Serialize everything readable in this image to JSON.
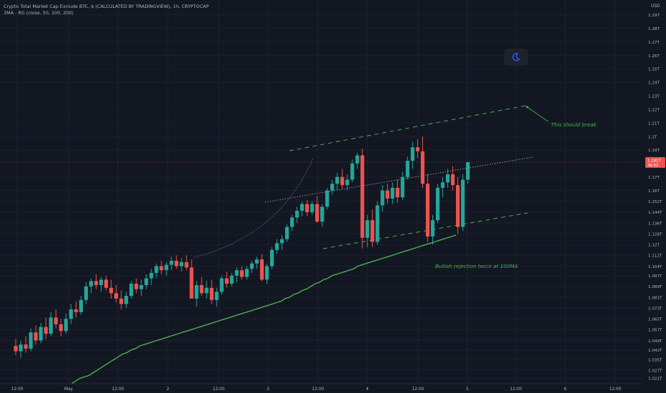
{
  "header": {
    "title": "Crypto Total Market Cap Exclude BTC, $ (CALCULATED BY TRADINGVIEW), 1h, CRYPTOCAP",
    "indicator": "3MA - RG (close, 50, 100, 200)"
  },
  "currency_label": "USD",
  "theme_toggle_icon": "moon-icon",
  "colors": {
    "background": "#131722",
    "grid": "#1c2030",
    "up": "#26a69a",
    "down": "#ef5350",
    "ma": "#4caf50",
    "axis_text": "#b2b5be",
    "annotation": "#4caf50"
  },
  "chart_data": {
    "type": "candlestick",
    "title": "Crypto Total Market Cap Exclude BTC, $ (CALCULATED BY TRADINGVIEW), 1h, CRYPTOCAP",
    "y_unit": "USD",
    "ylim": [
      "1.017T",
      "1.301T"
    ],
    "y_ticks": [
      "1.29T",
      "1.28T",
      "1.27T",
      "1.26T",
      "1.25T",
      "1.24T",
      "1.23T",
      "1.22T",
      "1.21T",
      "1.2T",
      "1.19T",
      "1.17T",
      "1.16T",
      "1.152T",
      "1.144T",
      "1.136T",
      "1.128T",
      "1.12T",
      "1.112T",
      "1.104T",
      "1.097T",
      "1.089T",
      "1.081T",
      "1.073T",
      "1.065T",
      "1.057T",
      "1.049T",
      "1.042T",
      "1.035T",
      "1.027T",
      "1.021T"
    ],
    "x_ticks": [
      "12:00",
      "May",
      "12:00",
      "2",
      "12:00",
      "3",
      "12:00",
      "4",
      "12:00",
      "5",
      "12:00",
      "6",
      "12:00"
    ],
    "last_price": {
      "value": "1.181T",
      "countdown": "36:02"
    },
    "grid": true,
    "candles": [
      [
        1.045,
        1.05,
        1.038,
        1.041
      ],
      [
        1.041,
        1.049,
        1.036,
        1.046
      ],
      [
        1.046,
        1.052,
        1.04,
        1.043
      ],
      [
        1.043,
        1.058,
        1.041,
        1.055
      ],
      [
        1.055,
        1.06,
        1.046,
        1.049
      ],
      [
        1.049,
        1.062,
        1.047,
        1.059
      ],
      [
        1.059,
        1.066,
        1.05,
        1.054
      ],
      [
        1.054,
        1.07,
        1.052,
        1.066
      ],
      [
        1.066,
        1.072,
        1.058,
        1.061
      ],
      [
        1.061,
        1.065,
        1.052,
        1.056
      ],
      [
        1.056,
        1.069,
        1.054,
        1.065
      ],
      [
        1.065,
        1.076,
        1.061,
        1.072
      ],
      [
        1.072,
        1.078,
        1.066,
        1.07
      ],
      [
        1.07,
        1.082,
        1.068,
        1.079
      ],
      [
        1.079,
        1.092,
        1.076,
        1.089
      ],
      [
        1.089,
        1.095,
        1.084,
        1.093
      ],
      [
        1.093,
        1.098,
        1.087,
        1.09
      ],
      [
        1.09,
        1.096,
        1.085,
        1.094
      ],
      [
        1.094,
        1.097,
        1.086,
        1.088
      ],
      [
        1.088,
        1.094,
        1.08,
        1.084
      ],
      [
        1.084,
        1.09,
        1.077,
        1.08
      ],
      [
        1.08,
        1.086,
        1.072,
        1.076
      ],
      [
        1.076,
        1.085,
        1.073,
        1.082
      ],
      [
        1.082,
        1.093,
        1.08,
        1.091
      ],
      [
        1.091,
        1.095,
        1.084,
        1.087
      ],
      [
        1.087,
        1.094,
        1.082,
        1.09
      ],
      [
        1.09,
        1.098,
        1.087,
        1.095
      ],
      [
        1.095,
        1.102,
        1.09,
        1.099
      ],
      [
        1.099,
        1.106,
        1.095,
        1.104
      ],
      [
        1.104,
        1.108,
        1.098,
        1.101
      ],
      [
        1.101,
        1.107,
        1.097,
        1.105
      ],
      [
        1.105,
        1.111,
        1.101,
        1.108
      ],
      [
        1.108,
        1.112,
        1.102,
        1.104
      ],
      [
        1.104,
        1.11,
        1.1,
        1.107
      ],
      [
        1.107,
        1.112,
        1.101,
        1.103
      ],
      [
        1.103,
        1.109,
        1.094,
        1.08
      ],
      [
        1.08,
        1.093,
        1.074,
        1.09
      ],
      [
        1.09,
        1.096,
        1.082,
        1.084
      ],
      [
        1.084,
        1.093,
        1.08,
        1.088
      ],
      [
        1.088,
        1.094,
        1.076,
        1.079
      ],
      [
        1.079,
        1.088,
        1.074,
        1.085
      ],
      [
        1.085,
        1.097,
        1.083,
        1.095
      ],
      [
        1.095,
        1.1,
        1.088,
        1.091
      ],
      [
        1.091,
        1.099,
        1.089,
        1.097
      ],
      [
        1.097,
        1.103,
        1.092,
        1.101
      ],
      [
        1.101,
        1.104,
        1.094,
        1.096
      ],
      [
        1.096,
        1.104,
        1.094,
        1.102
      ],
      [
        1.102,
        1.108,
        1.099,
        1.106
      ],
      [
        1.106,
        1.111,
        1.102,
        1.109
      ],
      [
        1.109,
        1.113,
        1.093,
        1.094
      ],
      [
        1.094,
        1.106,
        1.091,
        1.104
      ],
      [
        1.104,
        1.118,
        1.102,
        1.116
      ],
      [
        1.116,
        1.124,
        1.113,
        1.121
      ],
      [
        1.121,
        1.127,
        1.116,
        1.124
      ],
      [
        1.124,
        1.135,
        1.122,
        1.133
      ],
      [
        1.133,
        1.142,
        1.13,
        1.14
      ],
      [
        1.14,
        1.148,
        1.136,
        1.145
      ],
      [
        1.145,
        1.152,
        1.141,
        1.15
      ],
      [
        1.15,
        1.153,
        1.141,
        1.144
      ],
      [
        1.144,
        1.152,
        1.142,
        1.15
      ],
      [
        1.15,
        1.156,
        1.136,
        1.137
      ],
      [
        1.137,
        1.15,
        1.133,
        1.148
      ],
      [
        1.148,
        1.162,
        1.146,
        1.16
      ],
      [
        1.16,
        1.168,
        1.157,
        1.165
      ],
      [
        1.165,
        1.173,
        1.16,
        1.17
      ],
      [
        1.17,
        1.176,
        1.161,
        1.164
      ],
      [
        1.164,
        1.172,
        1.16,
        1.168
      ],
      [
        1.168,
        1.183,
        1.166,
        1.18
      ],
      [
        1.18,
        1.188,
        1.176,
        1.186
      ],
      [
        1.186,
        1.191,
        1.117,
        1.125
      ],
      [
        1.125,
        1.142,
        1.118,
        1.138
      ],
      [
        1.138,
        1.146,
        1.118,
        1.122
      ],
      [
        1.122,
        1.152,
        1.12,
        1.149
      ],
      [
        1.149,
        1.164,
        1.144,
        1.16
      ],
      [
        1.16,
        1.165,
        1.15,
        1.154
      ],
      [
        1.154,
        1.166,
        1.15,
        1.162
      ],
      [
        1.162,
        1.168,
        1.151,
        1.155
      ],
      [
        1.155,
        1.174,
        1.153,
        1.17
      ],
      [
        1.17,
        1.185,
        1.168,
        1.182
      ],
      [
        1.182,
        1.196,
        1.176,
        1.192
      ],
      [
        1.192,
        1.198,
        1.184,
        1.189
      ],
      [
        1.189,
        1.2,
        1.162,
        1.165
      ],
      [
        1.165,
        1.172,
        1.122,
        1.126
      ],
      [
        1.126,
        1.142,
        1.12,
        1.138
      ],
      [
        1.138,
        1.165,
        1.136,
        1.162
      ],
      [
        1.162,
        1.17,
        1.155,
        1.166
      ],
      [
        1.166,
        1.176,
        1.162,
        1.172
      ],
      [
        1.172,
        1.178,
        1.16,
        1.164
      ],
      [
        1.164,
        1.17,
        1.128,
        1.133
      ],
      [
        1.133,
        1.172,
        1.13,
        1.168
      ],
      [
        1.168,
        1.178,
        1.165,
        1.181
      ]
    ],
    "moving_average": [
      1.017,
      1.019,
      1.021,
      1.022,
      1.023,
      1.025,
      1.027,
      1.029,
      1.031,
      1.033,
      1.035,
      1.037,
      1.039,
      1.04,
      1.042,
      1.043,
      1.045,
      1.046,
      1.047,
      1.048,
      1.049,
      1.05,
      1.051,
      1.052,
      1.053,
      1.054,
      1.055,
      1.056,
      1.057,
      1.058,
      1.059,
      1.06,
      1.061,
      1.062,
      1.063,
      1.064,
      1.065,
      1.066,
      1.067,
      1.068,
      1.069,
      1.07,
      1.071,
      1.072,
      1.073,
      1.074,
      1.075,
      1.076,
      1.077,
      1.078,
      1.08,
      1.081,
      1.083,
      1.084,
      1.086,
      1.087,
      1.089,
      1.091,
      1.092,
      1.094,
      1.095,
      1.097,
      1.098,
      1.099,
      1.1,
      1.101,
      1.102,
      1.104,
      1.105,
      1.106,
      1.107,
      1.108,
      1.109,
      1.11,
      1.111,
      1.112,
      1.113,
      1.114,
      1.115,
      1.116,
      1.117,
      1.118,
      1.119,
      1.12,
      1.121,
      1.122,
      1.123,
      1.124,
      1.125,
      1.126,
      1.127
    ],
    "annotations": [
      {
        "text": "This should break"
      },
      {
        "text": "Bullish rejection twice at 100MA"
      }
    ]
  }
}
